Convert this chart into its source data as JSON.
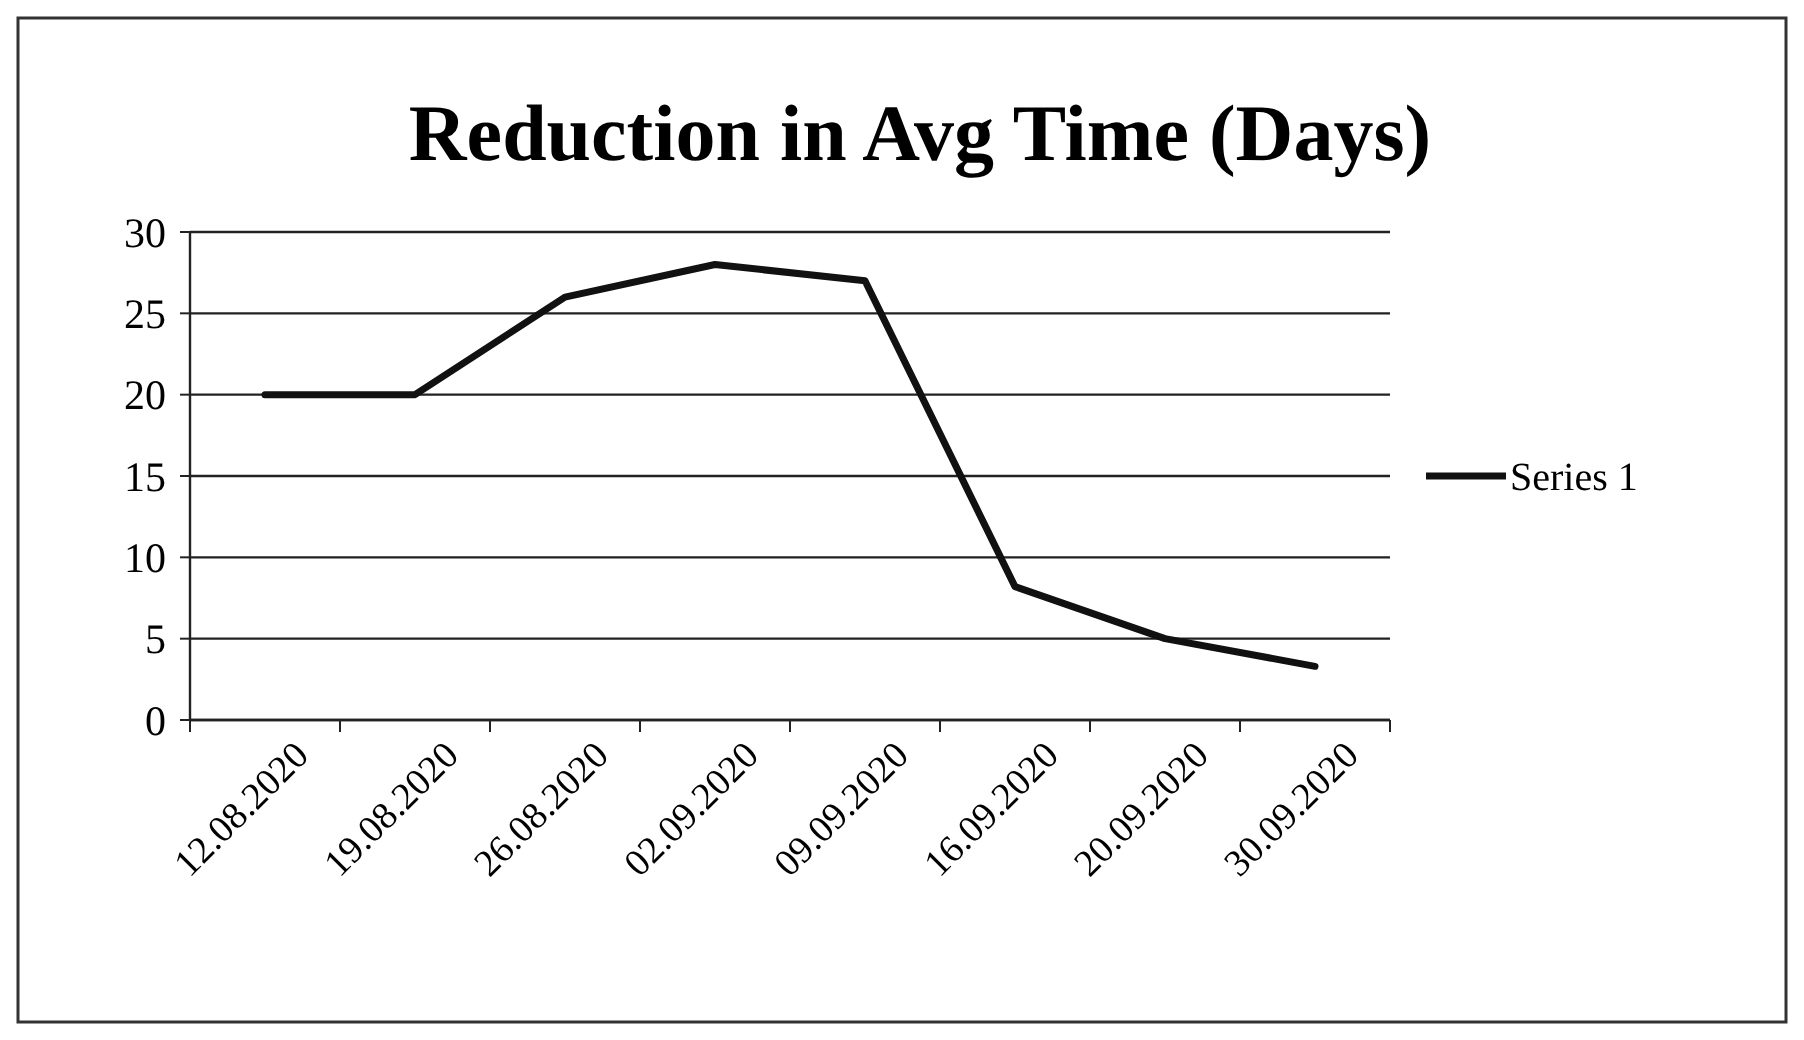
{
  "chart_data": {
    "type": "line",
    "title": "Reduction  in Avg Time (Days)",
    "categories": [
      "12.08.2020",
      "19.08.2020",
      "26.08.2020",
      "02.09.2020",
      "09.09.2020",
      "16.09.2020",
      "20.09.2020",
      "30.09.2020"
    ],
    "series": [
      {
        "name": "Series 1",
        "color": "#111111",
        "values": [
          20,
          20,
          26,
          28,
          27,
          8.2,
          5,
          3.3
        ]
      }
    ],
    "ylim": [
      0,
      30
    ],
    "yticks": [
      0,
      5,
      10,
      15,
      20,
      25,
      30
    ],
    "grid": "y",
    "legend": "right",
    "marker": "none",
    "line_style": "solid"
  }
}
